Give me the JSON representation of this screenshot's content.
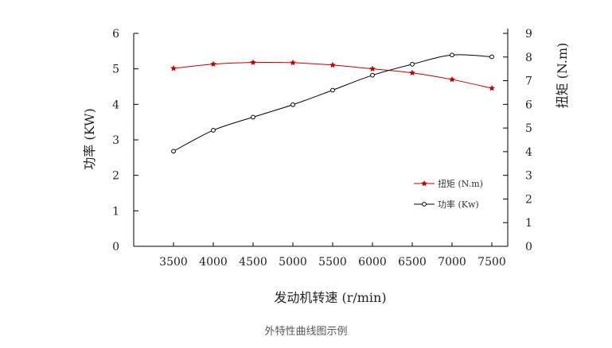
{
  "caption": "外特性曲线图示例",
  "chart_data": {
    "type": "line",
    "xlabel": "发动机转速 (r/min)",
    "ylabel_left": "功率 (KW)",
    "ylabel_right": "扭矩 (N.m)",
    "x": [
      3500,
      4000,
      4500,
      5000,
      5500,
      6000,
      6500,
      7000,
      7500
    ],
    "xlim": [
      3000,
      7700
    ],
    "ylim_left": [
      0,
      6
    ],
    "ylim_right": [
      0,
      9
    ],
    "yticks_left": [
      0,
      1,
      2,
      3,
      4,
      5,
      6
    ],
    "yticks_right": [
      0,
      1,
      2,
      3,
      4,
      5,
      6,
      7,
      8,
      9
    ],
    "grid": false,
    "legend": "center-right",
    "series": [
      {
        "name": "扭矩 (N.m)",
        "axis": "right",
        "color": "#c00000",
        "marker": "star",
        "values": [
          7.52,
          7.7,
          7.77,
          7.76,
          7.66,
          7.5,
          7.33,
          7.05,
          6.68
        ]
      },
      {
        "name": "功率 (Kw)",
        "axis": "left",
        "color": "#000000",
        "marker": "circle",
        "values": [
          2.68,
          3.27,
          3.64,
          3.99,
          4.4,
          4.82,
          5.13,
          5.39,
          5.34
        ]
      }
    ]
  }
}
